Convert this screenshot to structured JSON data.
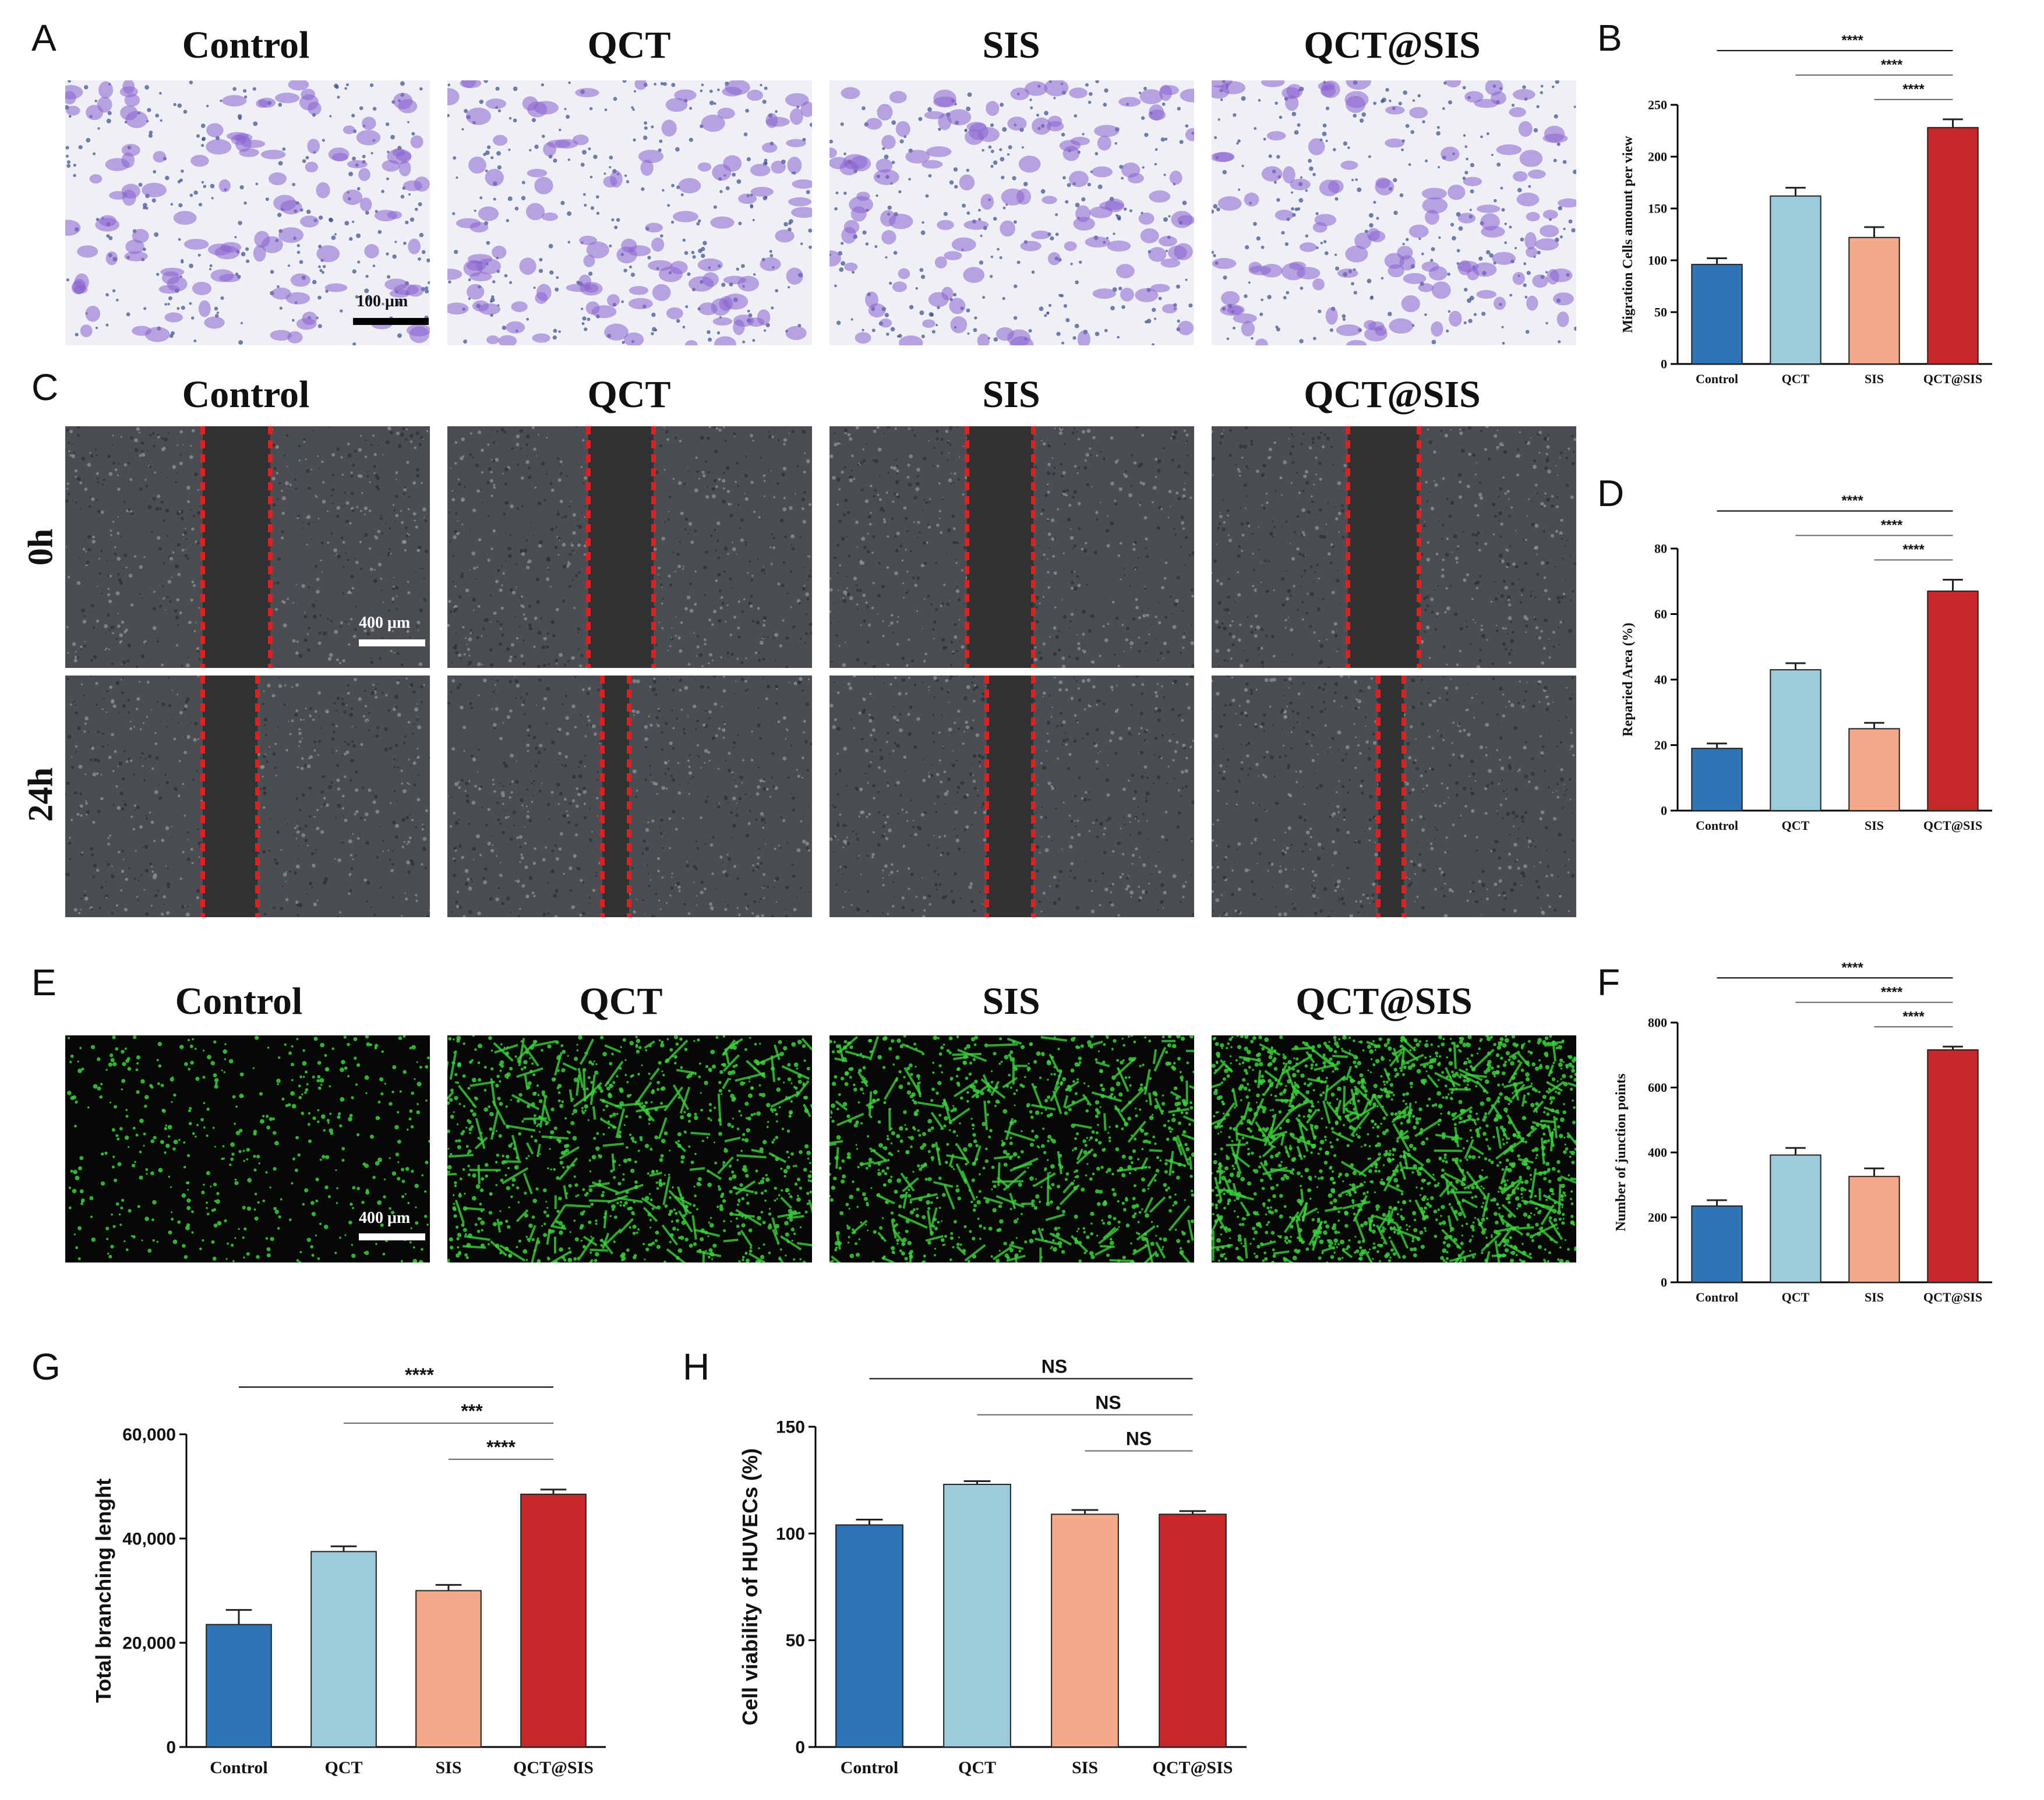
{
  "panels": {
    "A": {
      "letter": "A",
      "columns": [
        "Control",
        "QCT",
        "SIS",
        "QCT@SIS"
      ],
      "scale_bar": "100 μm"
    },
    "C": {
      "letter": "C",
      "columns": [
        "Control",
        "QCT",
        "SIS",
        "QCT@SIS"
      ],
      "rows": [
        "0h",
        "24h"
      ],
      "scale_bar": "400 μm"
    },
    "E": {
      "letter": "E",
      "columns": [
        "Control",
        "QCT",
        "SIS",
        "QCT@SIS"
      ],
      "scale_bar": "400 μm"
    }
  },
  "chart_data": [
    {
      "id": "B",
      "letter": "B",
      "type": "bar",
      "categories": [
        "Control",
        "QCT",
        "SIS",
        "QCT@SIS"
      ],
      "values": [
        96,
        162,
        122,
        228
      ],
      "errors": [
        6,
        8,
        10,
        8
      ],
      "colors": [
        "#2e75b6",
        "#9ccbdb",
        "#f4a98a",
        "#c8282a"
      ],
      "ylabel": "Migration Cells amount per view",
      "ylim": [
        0,
        250
      ],
      "yticks": [
        "0",
        "50",
        "100",
        "150",
        "200",
        "250"
      ],
      "significance": [
        "****",
        "****",
        "****"
      ]
    },
    {
      "id": "D",
      "letter": "D",
      "type": "bar",
      "categories": [
        "Control",
        "QCT",
        "SIS",
        "QCT@SIS"
      ],
      "values": [
        19,
        43,
        25,
        67
      ],
      "errors": [
        1.5,
        2,
        1.8,
        3.5
      ],
      "colors": [
        "#2e75b6",
        "#9ccbdb",
        "#f4a98a",
        "#c8282a"
      ],
      "ylabel": "Reparied Area (%)",
      "ylim": [
        0,
        80
      ],
      "yticks": [
        "0",
        "20",
        "40",
        "60",
        "80"
      ],
      "significance": [
        "****",
        "****",
        "****"
      ]
    },
    {
      "id": "F",
      "letter": "F",
      "type": "bar",
      "categories": [
        "Control",
        "QCT",
        "SIS",
        "QCT@SIS"
      ],
      "values": [
        235,
        392,
        326,
        716
      ],
      "errors": [
        18,
        22,
        25,
        10
      ],
      "colors": [
        "#2e75b6",
        "#9ccbdb",
        "#f4a98a",
        "#c8282a"
      ],
      "ylabel": "Number of junction points",
      "ylim": [
        0,
        800
      ],
      "yticks": [
        "0",
        "200",
        "400",
        "600",
        "800"
      ],
      "significance": [
        "****",
        "****",
        "****"
      ]
    },
    {
      "id": "G",
      "letter": "G",
      "type": "bar",
      "categories": [
        "Control",
        "QCT",
        "SIS",
        "QCT@SIS"
      ],
      "values": [
        23500,
        37500,
        30000,
        48500
      ],
      "errors": [
        2800,
        1000,
        1100,
        900
      ],
      "colors": [
        "#2e75b6",
        "#9ccbdb",
        "#f4a98a",
        "#c8282a"
      ],
      "ylabel": "Total branching lenght",
      "ylim": [
        0,
        60000
      ],
      "yticks": [
        "0",
        "20,000",
        "40,000",
        "60,000"
      ],
      "significance": [
        "****",
        "***",
        "****"
      ]
    },
    {
      "id": "H",
      "letter": "H",
      "type": "bar",
      "categories": [
        "Control",
        "QCT",
        "SIS",
        "QCT@SIS"
      ],
      "values": [
        104,
        123,
        109,
        109
      ],
      "errors": [
        2.5,
        1.5,
        2,
        1.5
      ],
      "colors": [
        "#2e75b6",
        "#9ccbdb",
        "#f4a98a",
        "#c8282a"
      ],
      "ylabel": "Cell viability of HUVECs (%)",
      "ylim": [
        0,
        150
      ],
      "yticks": [
        "0",
        "50",
        "100",
        "150"
      ],
      "significance": [
        "NS",
        "NS",
        "NS"
      ]
    }
  ]
}
